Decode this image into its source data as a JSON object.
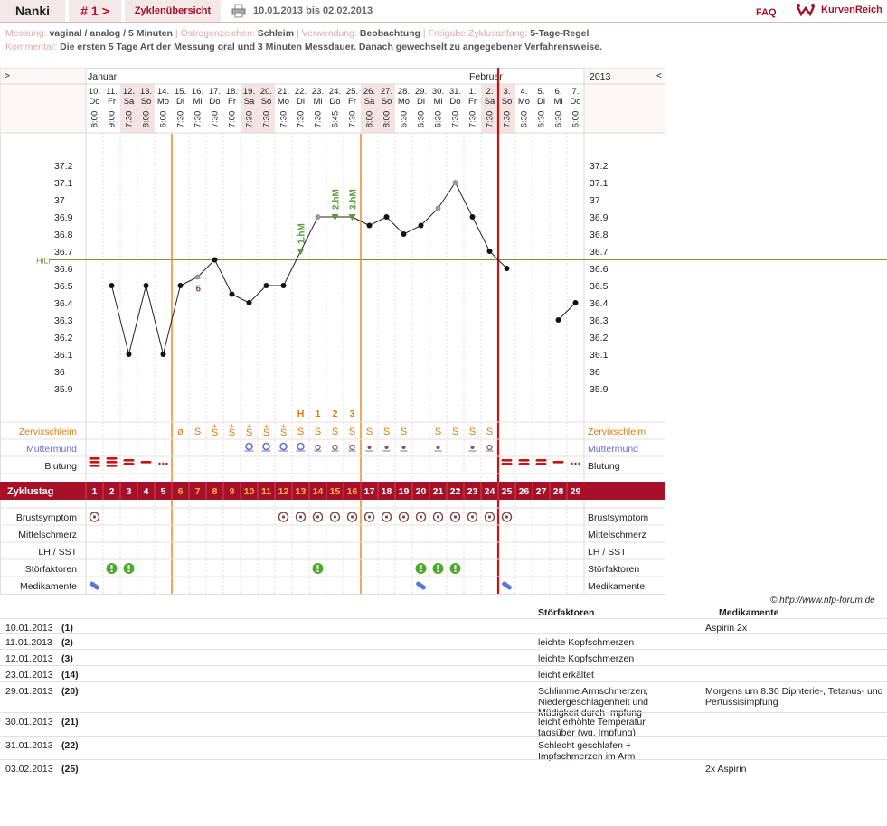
{
  "header": {
    "name": "Nanki",
    "cycle_label": "# 1 >",
    "overview": "Zyklenübersicht",
    "date_range": "10.01.2013 bis 02.02.2013",
    "faq": "FAQ",
    "logo": "KurvenReich"
  },
  "meta": {
    "messung_label": "Messung:",
    "messung": "vaginal / analog / 5 Minuten",
    "oestrogen_label": "Östrogenzeichen:",
    "oestrogen": "Schleim",
    "verwendung_label": "Verwendung:",
    "verwendung": "Beobachtung",
    "freigabe_label": "Freigabe Zyklusanfang:",
    "freigabe": "5-Tage-Regel",
    "kommentar_label": "Kommentar:",
    "kommentar": "Die ersten 5 Tage Art der Messung oral und 3 Minuten Messdauer. Danach gewechselt zu angegebener Verfahrensweise."
  },
  "chart_data": {
    "type": "line",
    "year": "2013",
    "nav_left": ">",
    "nav_right": "<",
    "month_jan": "Januar",
    "month_feb": "Februar",
    "days": [
      {
        "d": "10.",
        "w": "Do",
        "t": "8:00"
      },
      {
        "d": "11.",
        "w": "Fr",
        "t": "9:00"
      },
      {
        "d": "12.",
        "w": "Sa",
        "t": "7:30"
      },
      {
        "d": "13.",
        "w": "So",
        "t": "8:00"
      },
      {
        "d": "14.",
        "w": "Mo",
        "t": "6:00"
      },
      {
        "d": "15.",
        "w": "Di",
        "t": "7:30"
      },
      {
        "d": "16.",
        "w": "Mi",
        "t": "7:30"
      },
      {
        "d": "17.",
        "w": "Do",
        "t": "7:30"
      },
      {
        "d": "18.",
        "w": "Fr",
        "t": "7:00"
      },
      {
        "d": "19.",
        "w": "Sa",
        "t": "7:30"
      },
      {
        "d": "20.",
        "w": "So",
        "t": "7:30"
      },
      {
        "d": "21.",
        "w": "Mo",
        "t": "7:30"
      },
      {
        "d": "22.",
        "w": "Di",
        "t": "7:30"
      },
      {
        "d": "23.",
        "w": "Mi",
        "t": "7:30"
      },
      {
        "d": "24.",
        "w": "Do",
        "t": "6:45"
      },
      {
        "d": "25.",
        "w": "Fr",
        "t": "7:30"
      },
      {
        "d": "26.",
        "w": "Sa",
        "t": "8:00"
      },
      {
        "d": "27.",
        "w": "So",
        "t": "8:00"
      },
      {
        "d": "28.",
        "w": "Mo",
        "t": "6:30"
      },
      {
        "d": "29.",
        "w": "Di",
        "t": "6:30"
      },
      {
        "d": "30.",
        "w": "Mi",
        "t": "6:30"
      },
      {
        "d": "31.",
        "w": "Do",
        "t": "7:30"
      },
      {
        "d": "1.",
        "w": "Fr",
        "t": "7:30"
      },
      {
        "d": "2.",
        "w": "Sa",
        "t": "7:30"
      },
      {
        "d": "3.",
        "w": "So",
        "t": "7:30"
      },
      {
        "d": "4.",
        "w": "Mo",
        "t": "6:30"
      },
      {
        "d": "5.",
        "w": "Di",
        "t": "6:30"
      },
      {
        "d": "6.",
        "w": "Mi",
        "t": "6:30"
      },
      {
        "d": "7.",
        "w": "Do",
        "t": "6:00"
      }
    ],
    "weekend_idx": [
      2,
      3,
      9,
      10,
      16,
      17,
      23,
      24
    ],
    "y_ticks": [
      "37.2",
      "37.1",
      "37",
      "36.9",
      "36.8",
      "36.7",
      "36.6",
      "36.5",
      "36.4",
      "36.3",
      "36.2",
      "36.1",
      "36",
      "35.9"
    ],
    "ylim": [
      35.9,
      37.2
    ],
    "temps": [
      null,
      36.5,
      36.1,
      36.5,
      36.1,
      36.5,
      36.55,
      36.65,
      36.45,
      36.4,
      36.5,
      36.5,
      36.7,
      36.9,
      36.9,
      36.9,
      36.85,
      36.9,
      36.8,
      36.85,
      36.95,
      37.1,
      36.9,
      36.7,
      36.6,
      null,
      null,
      36.3,
      36.4
    ],
    "gray_points": [
      6,
      13,
      20,
      21
    ],
    "triangle_points": [
      12,
      14,
      15
    ],
    "triangle_labels": [
      "1.hM",
      "2.hM",
      "3.hM"
    ],
    "point_label": {
      "idx": 6,
      "text": "6"
    },
    "hili_label": "HiLi",
    "hili_value": 36.65,
    "marker_labels": {
      "H": 12,
      "1": 13,
      "2": 14,
      "3": 15
    },
    "cervix_label": "Zervixschleim",
    "cervix": [
      "",
      "",
      "",
      "",
      "",
      "ø",
      "S",
      "S+",
      "S+",
      "S+",
      "S+",
      "S+",
      "S",
      "S",
      "S",
      "S",
      "S",
      "S",
      "S",
      "",
      "S",
      "S",
      "S",
      "S",
      "",
      "",
      "",
      "",
      ""
    ],
    "mumu_label": "Muttermund",
    "blutung_label": "Blutung",
    "zyklustag_label": "Zyklustag",
    "brust_label": "Brustsymptom",
    "mittel_label": "Mittelschmerz",
    "lh_label": "LH / SST",
    "stoer_label": "Störfaktoren",
    "medi_label": "Medikamente",
    "brust_idx": [
      0,
      11,
      12,
      13,
      14,
      15,
      16,
      17,
      18,
      19,
      20,
      21,
      22,
      23,
      24
    ],
    "stoer_idx": [
      1,
      2,
      13,
      19,
      20,
      21
    ],
    "medi_idx": [
      0,
      19,
      24
    ]
  },
  "copyright": "© http://www.nfp-forum.de",
  "notes": {
    "stoer_header": "Störfaktoren",
    "medi_header": "Medikamente",
    "rows": [
      {
        "date": "10.01.2013",
        "n": "(1)",
        "s": "",
        "m": "Aspirin 2x"
      },
      {
        "date": "11.01.2013",
        "n": "(2)",
        "s": "leichte Kopfschmerzen",
        "m": ""
      },
      {
        "date": "12.01.2013",
        "n": "(3)",
        "s": "leichte Kopfschmerzen",
        "m": ""
      },
      {
        "date": "23.01.2013",
        "n": "(14)",
        "s": "leicht erkältet",
        "m": ""
      },
      {
        "date": "29.01.2013",
        "n": "(20)",
        "s": "Schlimme Armschmerzen, Niedergeschlagenheit und Müdigkeit durch Impfung",
        "m": "Morgens um 8.30 Diphterie-, Tetanus- und Pertussisimpfung"
      },
      {
        "date": "30.01.2013",
        "n": "(21)",
        "s": "leicht erhöhte Temperatur tagsüber (wg. Impfung)",
        "m": ""
      },
      {
        "date": "31.01.2013",
        "n": "(22)",
        "s": "Schlecht geschlafen + Impfschmerzen im Arm",
        "m": ""
      },
      {
        "date": "03.02.2013",
        "n": "(25)",
        "s": "",
        "m": "2x Aspirin"
      }
    ]
  }
}
